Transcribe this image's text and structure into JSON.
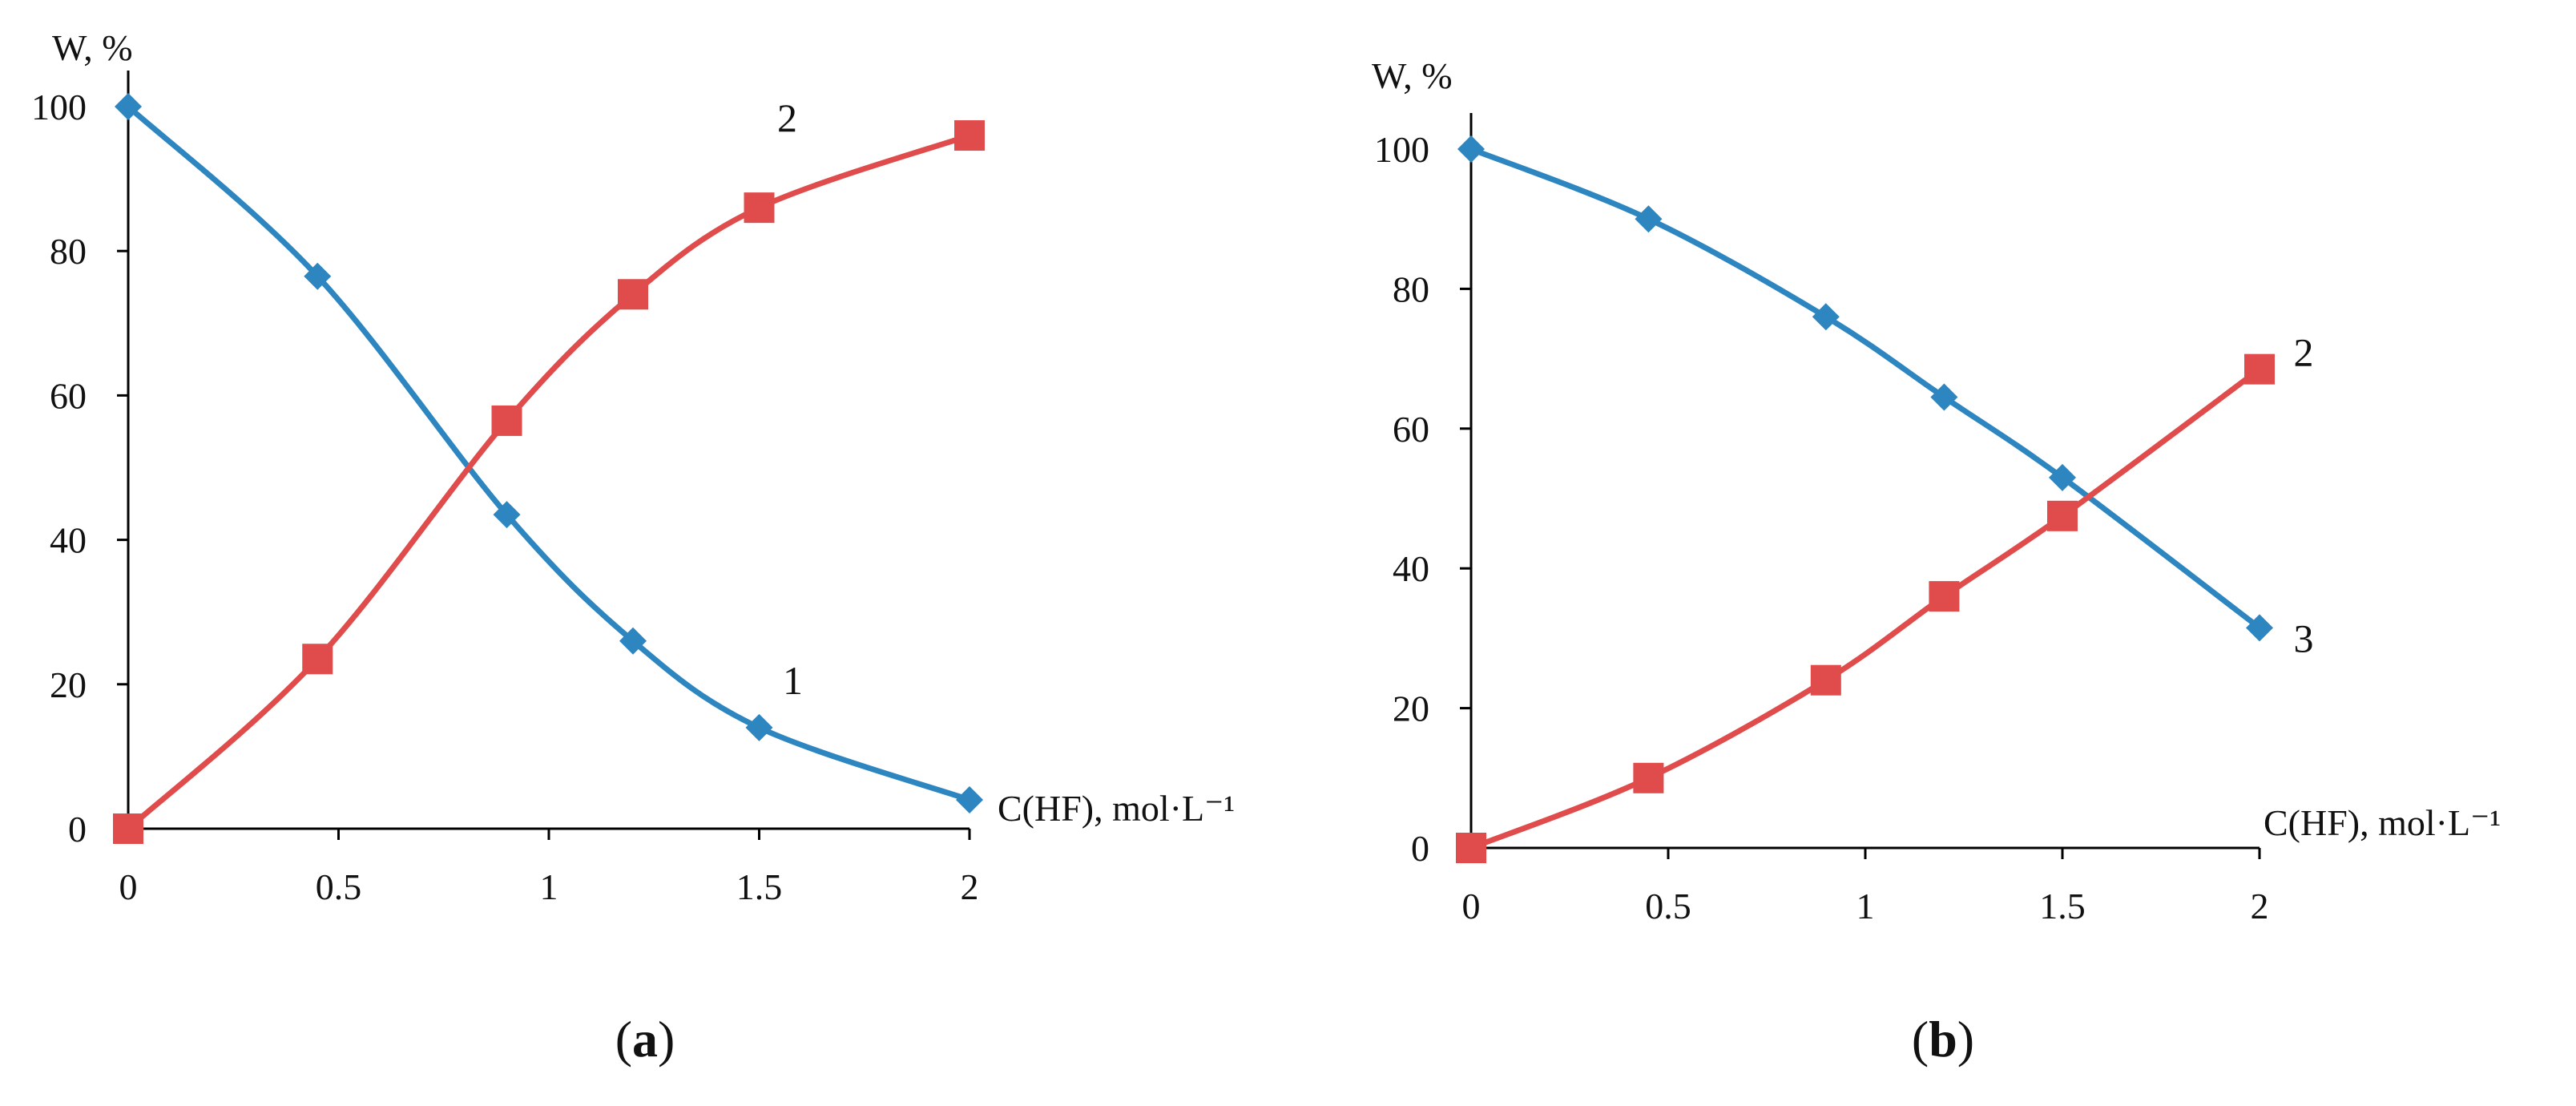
{
  "chart_data": [
    {
      "type": "line",
      "caption": "(a)",
      "caption_letter": "a",
      "ylabel": "W, %",
      "xlabel": "C(HF), mol·L⁻¹",
      "xlim": [
        0,
        2
      ],
      "ylim": [
        0,
        100
      ],
      "xticks": [
        "0",
        "0.5",
        "1",
        "1.5",
        "2"
      ],
      "yticks": [
        "0",
        "20",
        "40",
        "60",
        "80",
        "100"
      ],
      "x": [
        0,
        0.45,
        0.9,
        1.2,
        1.5,
        2.0
      ],
      "series": [
        {
          "name": "1",
          "label_at_index": 4,
          "marker": "diamond",
          "color": "#2E86C1",
          "values": [
            100,
            76.5,
            43.5,
            26,
            14,
            4
          ]
        },
        {
          "name": "2",
          "label_at_index": 4,
          "marker": "square",
          "color": "#E04B4B",
          "values": [
            0,
            23.5,
            56.5,
            74,
            86,
            96
          ]
        }
      ]
    },
    {
      "type": "line",
      "caption": "(b)",
      "caption_letter": "b",
      "ylabel": "W, %",
      "xlabel": "C(HF), mol·L⁻¹",
      "xlim": [
        0,
        2
      ],
      "ylim": [
        0,
        100
      ],
      "xticks": [
        "0",
        "0.5",
        "1",
        "1.5",
        "2"
      ],
      "yticks": [
        "0",
        "20",
        "40",
        "60",
        "80",
        "100"
      ],
      "x": [
        0,
        0.45,
        0.9,
        1.2,
        1.5,
        2.0
      ],
      "series": [
        {
          "name": "3",
          "label_at_index": 5,
          "marker": "diamond",
          "color": "#2E86C1",
          "values": [
            100,
            90,
            76,
            64.5,
            53,
            31.5
          ]
        },
        {
          "name": "2",
          "label_at_index": 5,
          "marker": "square",
          "color": "#E04B4B",
          "values": [
            0,
            10,
            24,
            36,
            47.5,
            68.5
          ]
        }
      ]
    }
  ]
}
